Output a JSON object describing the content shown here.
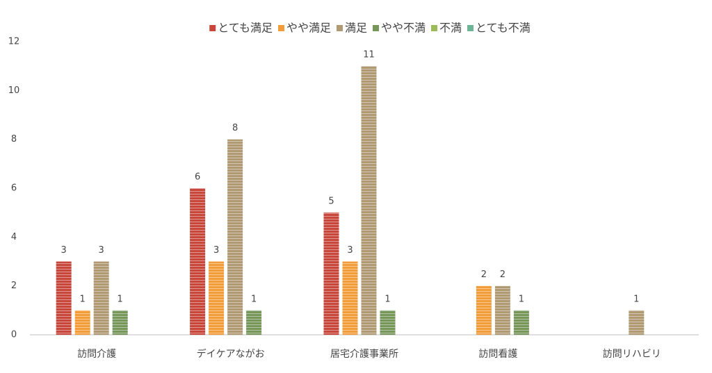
{
  "chart_data": {
    "type": "bar",
    "categories": [
      "訪問介護",
      "デイケアながお",
      "居宅介護事業所",
      "訪問看護",
      "訪問リハビリ"
    ],
    "series": [
      {
        "name": "とても満足",
        "color": "#c8473a",
        "values": [
          3,
          6,
          5,
          null,
          null
        ]
      },
      {
        "name": "やや満足",
        "color": "#f39c3a",
        "values": [
          1,
          3,
          3,
          2,
          null
        ]
      },
      {
        "name": "満足",
        "color": "#b09a74",
        "values": [
          3,
          8,
          11,
          2,
          1
        ]
      },
      {
        "name": "やや不満",
        "color": "#77965a",
        "values": [
          1,
          1,
          1,
          1,
          null
        ]
      },
      {
        "name": "不満",
        "color": "#9bbb59",
        "values": [
          null,
          null,
          null,
          null,
          null
        ]
      },
      {
        "name": "とても不満",
        "color": "#6db596",
        "values": [
          null,
          null,
          null,
          null,
          null
        ]
      }
    ],
    "ylim": [
      0,
      12
    ],
    "yticks": [
      0,
      2,
      4,
      6,
      8,
      10,
      12
    ],
    "legend": "top"
  }
}
